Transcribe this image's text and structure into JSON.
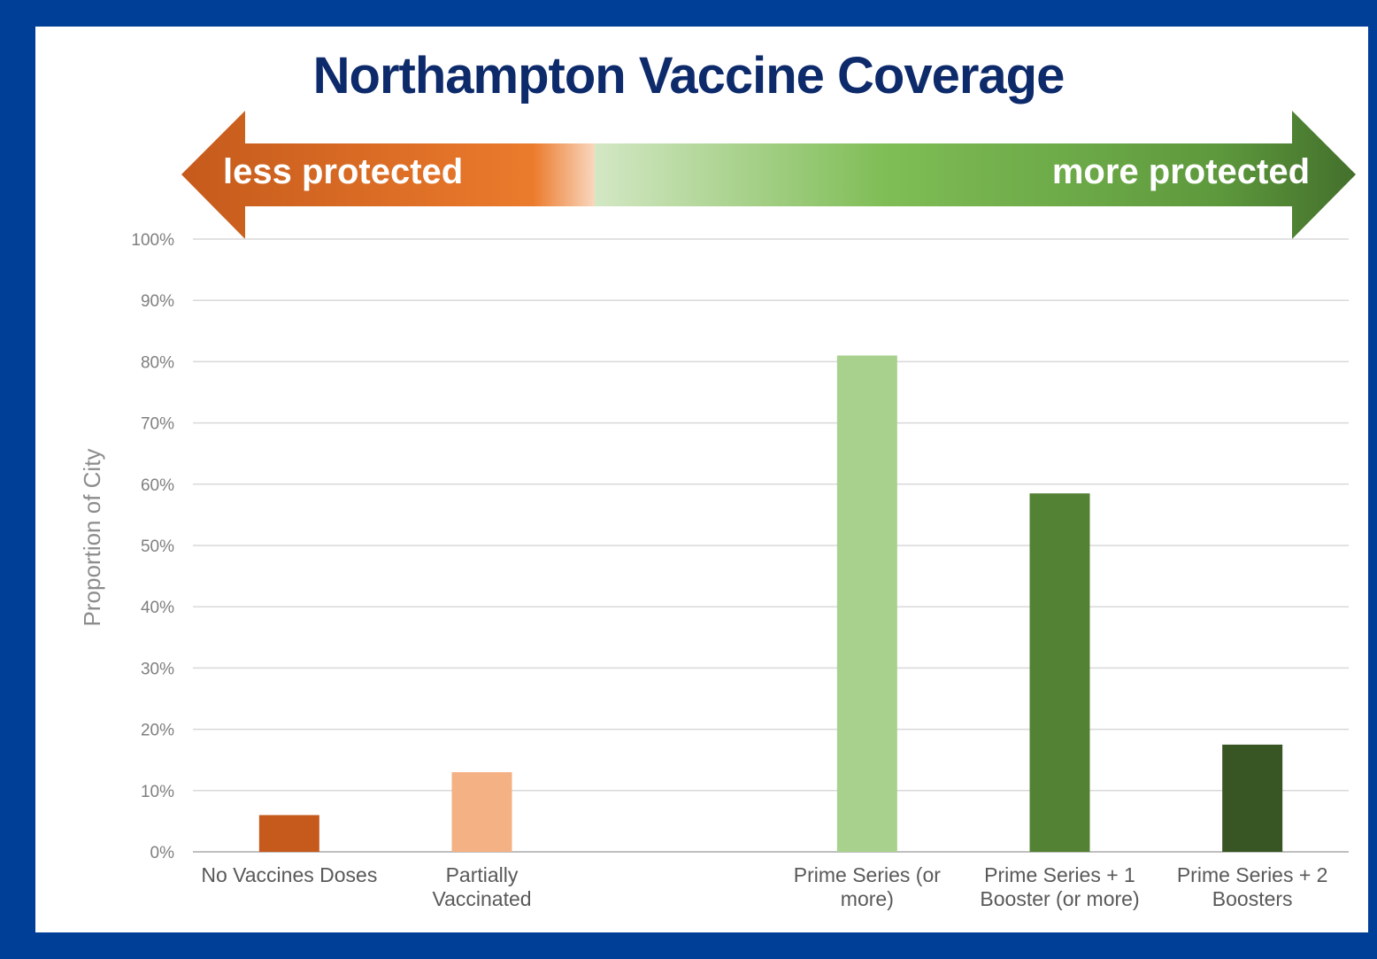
{
  "chart_data": {
    "type": "bar",
    "title": "Northampton Vaccine Coverage",
    "ylabel": "Proportion of City",
    "xlabel": "",
    "ylim": [
      0,
      100
    ],
    "yticks": [
      "0%",
      "10%",
      "20%",
      "30%",
      "40%",
      "50%",
      "60%",
      "70%",
      "80%",
      "90%",
      "100%"
    ],
    "categories": [
      [
        "No Vaccines Doses"
      ],
      [
        "Partially",
        "Vaccinated"
      ],
      [
        ""
      ],
      [
        "Prime Series (or",
        "more)"
      ],
      [
        "Prime Series + 1",
        "Booster (or more)"
      ],
      [
        "Prime Series + 2",
        "Boosters"
      ]
    ],
    "values": [
      6,
      13,
      null,
      81,
      58.5,
      17.5
    ],
    "colors": [
      "#c55a1c",
      "#f4b183",
      null,
      "#a9d18e",
      "#548235",
      "#375623"
    ],
    "grid": true,
    "scale_arrow": {
      "left_label": "less protected",
      "right_label": "more protected",
      "left_color": "#c55a1c",
      "right_color": "#4e7f32"
    }
  }
}
